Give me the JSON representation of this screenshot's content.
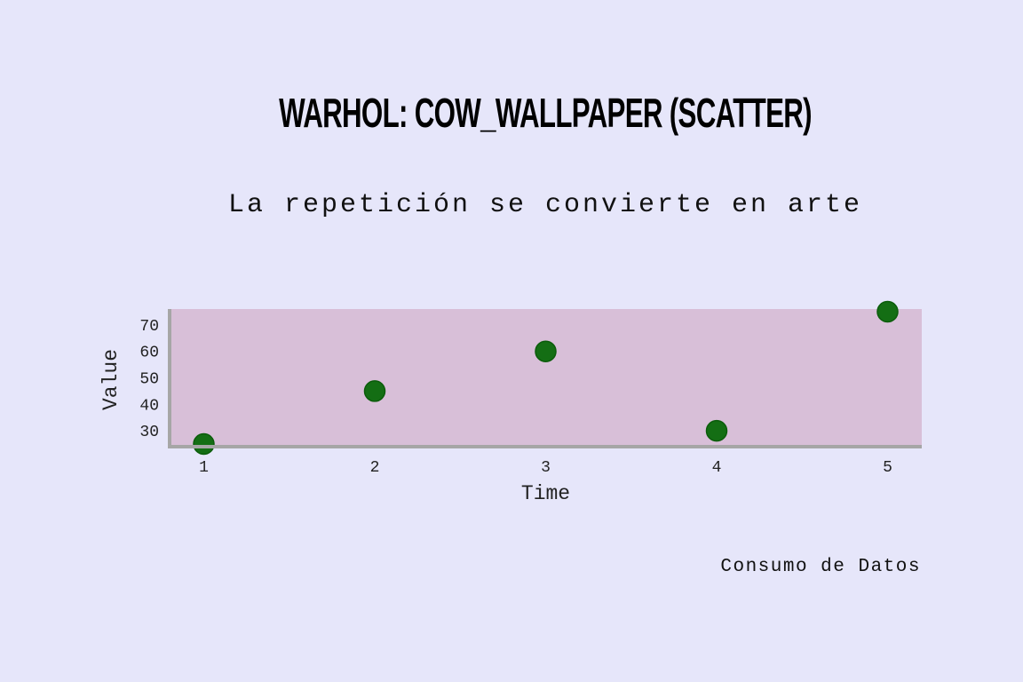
{
  "title": "WARHOL: COW_WALLPAPER (SCATTER)",
  "subtitle": "La repetición se convierte en arte",
  "footer": "Consumo de Datos",
  "chart_data": {
    "type": "scatter",
    "x": [
      1,
      2,
      3,
      4,
      5
    ],
    "y": [
      25,
      45,
      60,
      30,
      75
    ],
    "xlabel": "Time",
    "ylabel": "Value",
    "xticks": [
      1,
      2,
      3,
      4,
      5
    ],
    "yticks": [
      30,
      40,
      50,
      60,
      70
    ],
    "xlim": [
      0.8,
      5.2
    ],
    "ylim": [
      24,
      76
    ],
    "grid": false,
    "colors": {
      "point_fill": "#146e14",
      "point_stroke": "#0b5c0b",
      "plot_background": "#d8bfd8",
      "axis": "#a6a6a6",
      "page_background": "#e6e6fa"
    }
  }
}
